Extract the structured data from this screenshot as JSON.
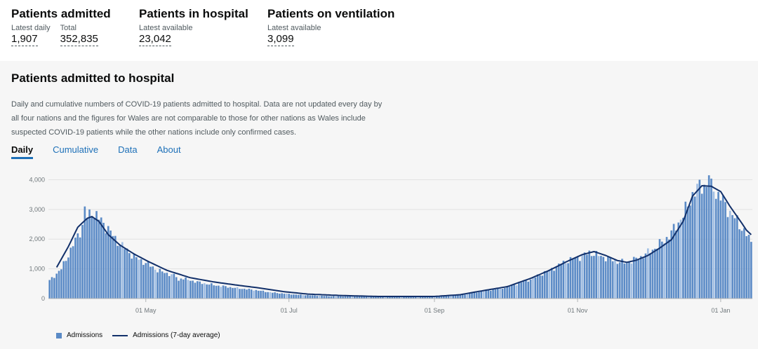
{
  "headline": {
    "admitted": {
      "title": "Patients admitted",
      "latest_label": "Latest daily",
      "latest_value": "1,907",
      "total_label": "Total",
      "total_value": "352,835"
    },
    "in_hospital": {
      "title": "Patients in hospital",
      "label": "Latest available",
      "value": "23,042"
    },
    "ventilation": {
      "title": "Patients on ventilation",
      "label": "Latest available",
      "value": "3,099"
    }
  },
  "card": {
    "title": "Patients admitted to hospital",
    "description": "Daily and cumulative numbers of COVID-19 patients admitted to hospital. Data are not updated every day by all four nations and the figures for Wales are not comparable to those for other nations as Wales include suspected COVID-19 patients while the other nations include only confirmed cases.",
    "tabs": [
      "Daily",
      "Cumulative",
      "Data",
      "About"
    ]
  },
  "colors": {
    "bar": "#5a8ac6",
    "bar_light": "#9fbde3",
    "line": "#12306a",
    "grid": "#e2e2e2"
  },
  "chart_data": {
    "type": "bar",
    "title": "Patients admitted to hospital",
    "ylim": [
      0,
      4200
    ],
    "yticks": [
      "0",
      "1,000",
      "2,000",
      "3,000",
      "4,000"
    ],
    "ytick_values": [
      0,
      1000,
      2000,
      3000,
      4000
    ],
    "xticks": [
      "01 May",
      "01 Jul",
      "01 Sep",
      "01 Nov",
      "01 Jan"
    ],
    "xtick_days": [
      41,
      102,
      164,
      225,
      286
    ],
    "date_range": [
      "20 Mar",
      "22 Jan"
    ],
    "series": [
      {
        "name": "Admissions",
        "kind": "bar",
        "anchors": [
          [
            0,
            600
          ],
          [
            5,
            1000
          ],
          [
            10,
            1800
          ],
          [
            15,
            2600
          ],
          [
            18,
            2950
          ],
          [
            21,
            2700
          ],
          [
            25,
            2350
          ],
          [
            28,
            2000
          ],
          [
            32,
            1700
          ],
          [
            36,
            1400
          ],
          [
            41,
            1200
          ],
          [
            46,
            950
          ],
          [
            52,
            800
          ],
          [
            58,
            650
          ],
          [
            65,
            520
          ],
          [
            72,
            430
          ],
          [
            80,
            350
          ],
          [
            88,
            280
          ],
          [
            95,
            200
          ],
          [
            105,
            130
          ],
          [
            120,
            80
          ],
          [
            140,
            65
          ],
          [
            164,
            65
          ],
          [
            175,
            120
          ],
          [
            185,
            250
          ],
          [
            195,
            380
          ],
          [
            205,
            650
          ],
          [
            213,
            950
          ],
          [
            220,
            1250
          ],
          [
            226,
            1400
          ],
          [
            230,
            1550
          ],
          [
            234,
            1450
          ],
          [
            238,
            1350
          ],
          [
            242,
            1250
          ],
          [
            246,
            1200
          ],
          [
            252,
            1400
          ],
          [
            258,
            1700
          ],
          [
            264,
            2100
          ],
          [
            270,
            2800
          ],
          [
            274,
            3500
          ],
          [
            278,
            3850
          ],
          [
            282,
            3700
          ],
          [
            286,
            3400
          ],
          [
            290,
            2900
          ],
          [
            294,
            2500
          ],
          [
            297,
            2150
          ],
          [
            299,
            1900
          ]
        ],
        "spikes": [
          [
            15,
            3100
          ],
          [
            17,
            3000
          ],
          [
            55,
            600
          ],
          [
            277,
            4000
          ],
          [
            281,
            4150
          ],
          [
            283,
            3600
          ],
          [
            286,
            3300
          ]
        ]
      },
      {
        "name": "Admissions (7-day average)",
        "kind": "line",
        "values": [
          [
            3,
            1050
          ],
          [
            8,
            1750
          ],
          [
            12,
            2400
          ],
          [
            16,
            2700
          ],
          [
            18,
            2760
          ],
          [
            21,
            2600
          ],
          [
            25,
            2150
          ],
          [
            30,
            1800
          ],
          [
            36,
            1500
          ],
          [
            42,
            1250
          ],
          [
            50,
            950
          ],
          [
            60,
            700
          ],
          [
            70,
            560
          ],
          [
            80,
            450
          ],
          [
            90,
            350
          ],
          [
            100,
            230
          ],
          [
            110,
            150
          ],
          [
            125,
            100
          ],
          [
            140,
            70
          ],
          [
            164,
            70
          ],
          [
            175,
            130
          ],
          [
            185,
            270
          ],
          [
            195,
            400
          ],
          [
            205,
            680
          ],
          [
            213,
            950
          ],
          [
            220,
            1230
          ],
          [
            227,
            1480
          ],
          [
            232,
            1580
          ],
          [
            237,
            1450
          ],
          [
            242,
            1280
          ],
          [
            246,
            1220
          ],
          [
            250,
            1290
          ],
          [
            255,
            1450
          ],
          [
            260,
            1700
          ],
          [
            265,
            1980
          ],
          [
            270,
            2600
          ],
          [
            274,
            3450
          ],
          [
            278,
            3800
          ],
          [
            282,
            3780
          ],
          [
            286,
            3600
          ],
          [
            290,
            3100
          ],
          [
            294,
            2650
          ],
          [
            297,
            2300
          ],
          [
            299,
            2150
          ]
        ]
      }
    ],
    "legend": [
      "Admissions",
      "Admissions (7-day average)"
    ]
  }
}
